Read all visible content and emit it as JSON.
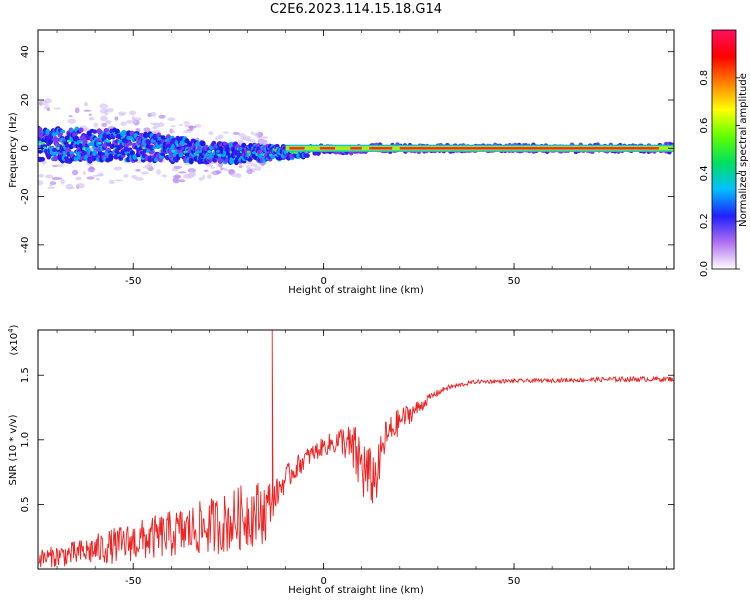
{
  "title": "C2E6.2023.114.15.18.G14",
  "colors": {
    "snr_line": "#ee2222",
    "spectrogram_noise": "#c8b0f0",
    "spectrogram_band": "#3030c0"
  },
  "chart_data": [
    {
      "type": "heatmap",
      "name": "spectrogram",
      "xlabel": "Height of straight line (km)",
      "ylabel": "Frequency (Hz)",
      "xlim": [
        -75,
        92
      ],
      "ylim": [
        -50,
        49
      ],
      "xticks": [
        -50,
        0,
        50
      ],
      "yticks": [
        -40,
        -20,
        0,
        20,
        40
      ],
      "xtick_labels": [
        "-50",
        "0",
        "50"
      ],
      "ytick_labels": [
        "-40",
        "-20",
        "0",
        "20",
        "40"
      ],
      "grid": false,
      "description_points": {
        "ridge_x": [
          -75,
          -60,
          -45,
          -30,
          -15,
          -5,
          0,
          5,
          10,
          20,
          40,
          60,
          88,
          92
        ],
        "ridge_freq": [
          1,
          1.5,
          0.5,
          -2,
          -2,
          -1.5,
          0,
          -1,
          0,
          0,
          0,
          0,
          0,
          0
        ],
        "spread_hz": [
          12,
          11,
          9,
          7,
          5,
          3,
          2,
          2,
          2,
          2,
          2,
          2,
          2,
          4
        ]
      }
    },
    {
      "type": "colorbar",
      "name": "colorbar",
      "label": "Normalized spectral amplitude",
      "range": [
        0,
        1
      ],
      "ticks": [
        0.0,
        0.2,
        0.4,
        0.6,
        0.8
      ],
      "tick_labels": [
        "0.0",
        "0.2",
        "0.4",
        "0.6",
        "0.8"
      ],
      "colors": [
        "#ffffff",
        "#b070f0",
        "#2020ff",
        "#00c0ff",
        "#00e060",
        "#60ff00",
        "#ffff00",
        "#ff8000",
        "#ff0000",
        "#ff1060"
      ]
    },
    {
      "type": "line",
      "name": "snr",
      "xlabel": "Height of straight line (km)",
      "ylabel": "SNR (10 * v/v)",
      "multiplier_label": "(x10",
      "multiplier_exp": "4",
      "multiplier_close": ")",
      "xlim": [
        -75,
        92
      ],
      "ylim": [
        0,
        1.85
      ],
      "xticks": [
        -50,
        0,
        50
      ],
      "yticks": [
        0.5,
        1.0,
        1.5
      ],
      "xtick_labels": [
        "-50",
        "0",
        "50"
      ],
      "ytick_labels": [
        "0.5",
        "1.0",
        "1.5"
      ],
      "grid": false,
      "envelope": {
        "x": [
          -75,
          -65,
          -55,
          -45,
          -35,
          -25,
          -20,
          -15,
          -14.5,
          -13,
          -10,
          -5,
          0,
          5,
          8,
          10,
          12,
          14,
          16,
          20,
          25,
          28,
          32,
          40,
          60,
          80,
          92
        ],
        "base": [
          0.08,
          0.12,
          0.18,
          0.24,
          0.3,
          0.36,
          0.42,
          0.45,
          0.5,
          0.55,
          0.7,
          0.85,
          0.95,
          1.0,
          0.9,
          0.8,
          0.7,
          0.72,
          1.0,
          1.15,
          1.25,
          1.33,
          1.4,
          1.45,
          1.46,
          1.47,
          1.47
        ],
        "amp": [
          0.07,
          0.1,
          0.14,
          0.17,
          0.2,
          0.24,
          0.26,
          0.25,
          0.2,
          0.12,
          0.1,
          0.08,
          0.07,
          0.12,
          0.22,
          0.28,
          0.25,
          0.2,
          0.15,
          0.1,
          0.06,
          0.03,
          0.02,
          0.015,
          0.015,
          0.02,
          0.02
        ]
      },
      "spike": {
        "x": -13.5,
        "y": 1.85
      }
    }
  ]
}
